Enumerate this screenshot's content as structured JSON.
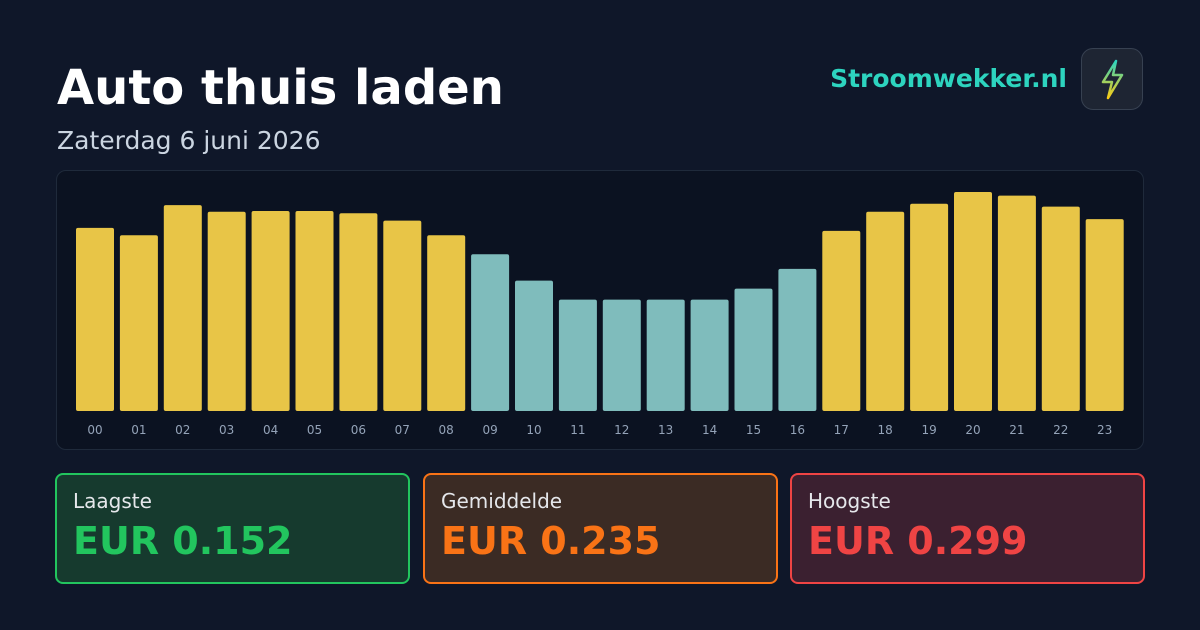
{
  "header": {
    "title": "Auto thuis laden",
    "subtitle": "Zaterdag 6 juni 2026",
    "brand": "Stroomwekker.nl"
  },
  "chart_data": {
    "type": "bar",
    "categories": [
      "00",
      "01",
      "02",
      "03",
      "04",
      "05",
      "06",
      "07",
      "08",
      "09",
      "10",
      "11",
      "12",
      "13",
      "14",
      "15",
      "16",
      "17",
      "18",
      "19",
      "20",
      "21",
      "22",
      "23"
    ],
    "values": [
      0.25,
      0.24,
      0.281,
      0.272,
      0.273,
      0.273,
      0.27,
      0.26,
      0.24,
      0.214,
      0.178,
      0.152,
      0.152,
      0.152,
      0.152,
      0.167,
      0.194,
      0.246,
      0.272,
      0.283,
      0.299,
      0.294,
      0.279,
      0.262
    ],
    "colors": [
      "#e8c547",
      "#e8c547",
      "#e8c547",
      "#e8c547",
      "#e8c547",
      "#e8c547",
      "#e8c547",
      "#e8c547",
      "#e8c547",
      "#7fbcbc",
      "#7fbcbc",
      "#7fbcbc",
      "#7fbcbc",
      "#7fbcbc",
      "#7fbcbc",
      "#7fbcbc",
      "#7fbcbc",
      "#e8c547",
      "#e8c547",
      "#e8c547",
      "#e8c547",
      "#e8c547",
      "#e8c547",
      "#e8c547"
    ]
  },
  "stats": [
    {
      "label": "Laagste",
      "value": "EUR 0.152"
    },
    {
      "label": "Gemiddelde",
      "value": "EUR 0.235"
    },
    {
      "label": "Hoogste",
      "value": "EUR 0.299"
    }
  ]
}
